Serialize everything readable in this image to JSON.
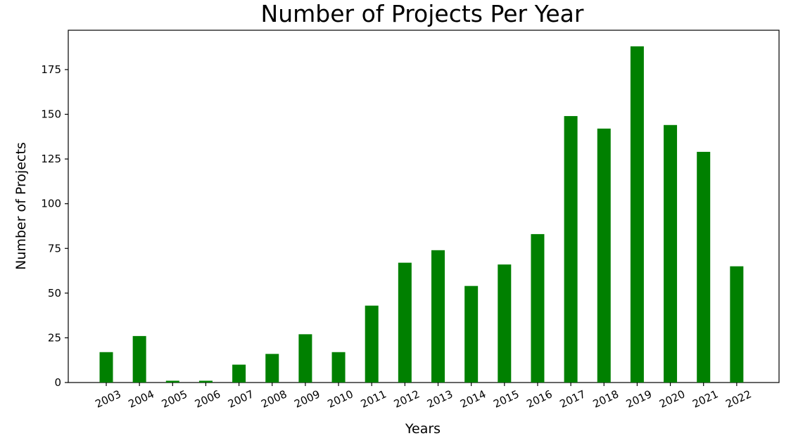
{
  "chart_data": {
    "type": "bar",
    "title": "Number of Projects Per Year",
    "xlabel": "Years",
    "ylabel": "Number of Projects",
    "categories": [
      "2003",
      "2004",
      "2005",
      "2006",
      "2007",
      "2008",
      "2009",
      "2010",
      "2011",
      "2012",
      "2013",
      "2014",
      "2015",
      "2016",
      "2017",
      "2018",
      "2019",
      "2020",
      "2021",
      "2022"
    ],
    "values": [
      17,
      26,
      1,
      1,
      10,
      16,
      27,
      17,
      43,
      67,
      74,
      54,
      66,
      83,
      149,
      142,
      188,
      144,
      129,
      65
    ],
    "yticks": [
      0,
      25,
      50,
      75,
      100,
      125,
      150,
      175
    ],
    "ylim": [
      0,
      197
    ],
    "bar_color": "#008000",
    "grid": false,
    "x_tick_rotation_deg": -25
  }
}
